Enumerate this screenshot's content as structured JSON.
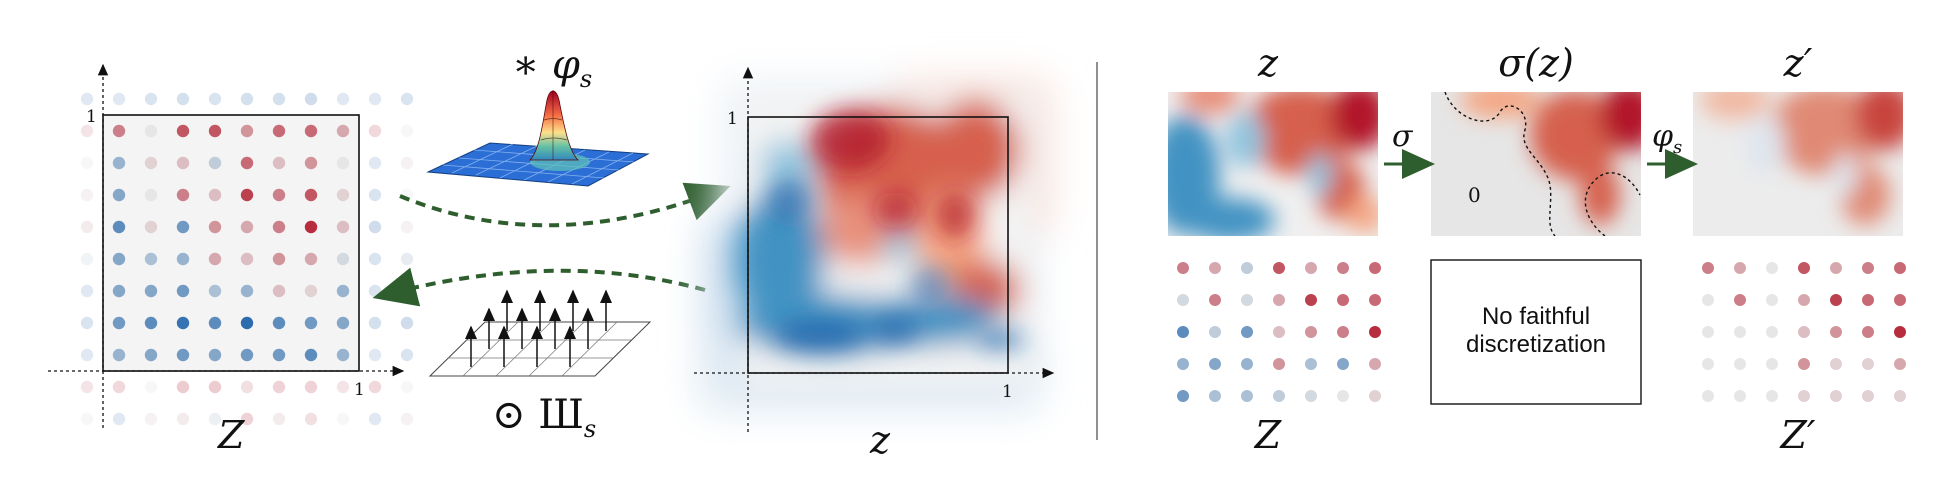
{
  "labels": {
    "Z_left": "Z",
    "z_center": "z",
    "tick_one": "1",
    "conv": "∗ φ",
    "conv_sub": "s",
    "sample": "⊙ Ш",
    "sample_sub": "s",
    "z_right": "z",
    "sigma_z": "σ(z)",
    "z_prime": "z′",
    "sigma_arrow": "σ",
    "phi_arrow": "φ",
    "phi_arrow_sub": "s",
    "zero": "0",
    "Z_right": "Z",
    "Z_prime": "Z′"
  },
  "box": {
    "line1": "No faithful",
    "line2": "discretization"
  },
  "colors": {
    "red": "#b2182b",
    "blue": "#2166ac",
    "neutral": "#e6e6e6",
    "arrow_green": "#2e5e2e"
  },
  "grid_left": [
    [
      0.5,
      0.0,
      0.7,
      0.7,
      0.4,
      0.6,
      0.6,
      0.3
    ],
    [
      -0.4,
      0.1,
      0.2,
      -0.2,
      0.6,
      0.2,
      0.4,
      0.0
    ],
    [
      -0.5,
      0.0,
      0.5,
      0.2,
      0.8,
      0.5,
      0.7,
      0.1
    ],
    [
      -0.7,
      0.1,
      -0.6,
      0.4,
      0.3,
      0.5,
      0.9,
      0.2
    ],
    [
      -0.5,
      -0.3,
      -0.4,
      0.3,
      0.2,
      0.4,
      0.3,
      -0.1
    ],
    [
      -0.5,
      -0.5,
      -0.6,
      -0.3,
      -0.4,
      0.2,
      0.1,
      -0.4
    ],
    [
      -0.6,
      -0.7,
      -0.9,
      -0.7,
      -0.95,
      -0.7,
      -0.6,
      -0.5
    ],
    [
      -0.4,
      -0.5,
      -0.6,
      -0.5,
      -0.6,
      -0.6,
      -0.7,
      -0.4
    ]
  ],
  "grid_right": [
    [
      0.5,
      0.3,
      -0.2,
      0.7,
      0.3,
      0.5,
      0.6
    ],
    [
      -0.1,
      0.5,
      -0.1,
      0.3,
      0.8,
      0.6,
      0.6
    ],
    [
      -0.7,
      -0.2,
      -0.6,
      0.2,
      0.4,
      0.5,
      0.9
    ],
    [
      -0.4,
      -0.5,
      -0.4,
      0.4,
      -0.3,
      -0.5,
      0.3
    ],
    [
      -0.6,
      -0.3,
      -0.3,
      -0.2,
      -0.1,
      0.0,
      0.1
    ]
  ],
  "grid_right_prime": [
    [
      0.5,
      0.3,
      0.0,
      0.7,
      0.3,
      0.5,
      0.6
    ],
    [
      0.0,
      0.5,
      0.0,
      0.3,
      0.8,
      0.6,
      0.6
    ],
    [
      0.0,
      0.0,
      0.0,
      0.2,
      0.4,
      0.5,
      0.9
    ],
    [
      0.0,
      0.0,
      0.0,
      0.4,
      0.1,
      0.1,
      0.3
    ],
    [
      0.0,
      0.0,
      0.0,
      0.1,
      0.1,
      0.1,
      0.1
    ]
  ]
}
